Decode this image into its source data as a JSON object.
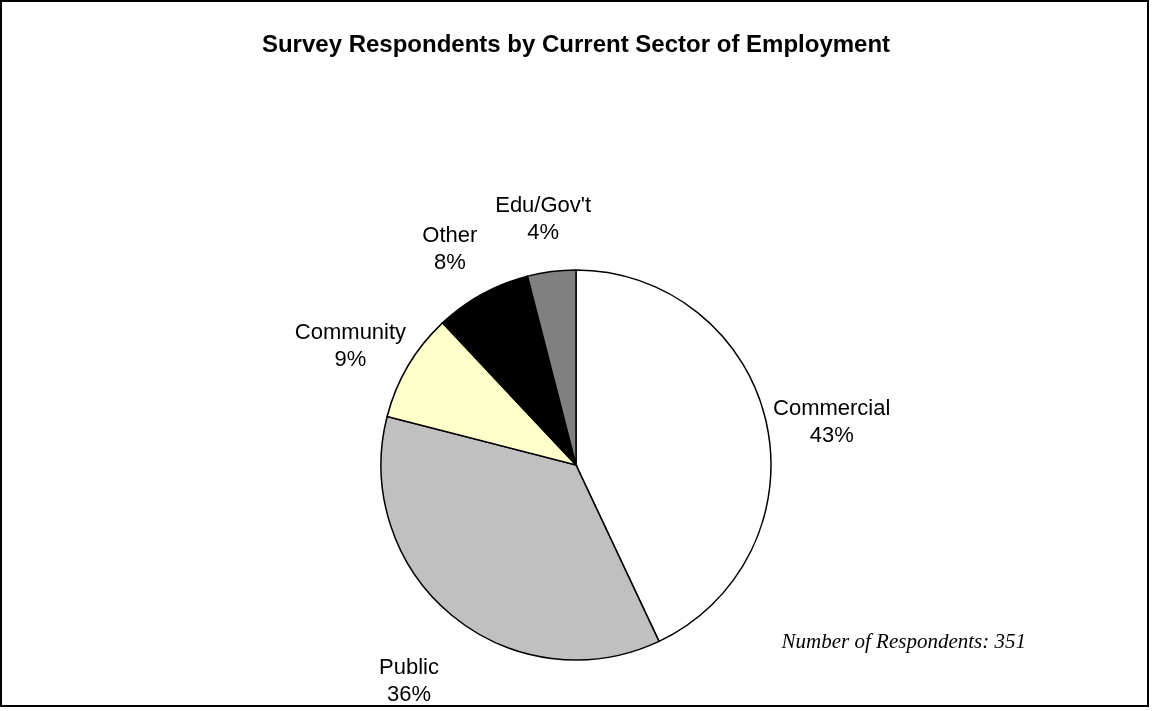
{
  "chart_data": {
    "type": "pie",
    "title": "Survey Respondents by Current Sector of Employment",
    "categories": [
      "Commercial",
      "Public",
      "Community",
      "Other",
      "Edu/Gov't"
    ],
    "values": [
      43,
      36,
      9,
      8,
      4
    ],
    "colors": [
      "#ffffff",
      "#c0c0c0",
      "#ffffcc",
      "#000000",
      "#808080"
    ],
    "value_labels": [
      "43%",
      "36%",
      "9%",
      "8%",
      "4%"
    ],
    "annotations": [
      "Number of Respondents: 351"
    ]
  }
}
